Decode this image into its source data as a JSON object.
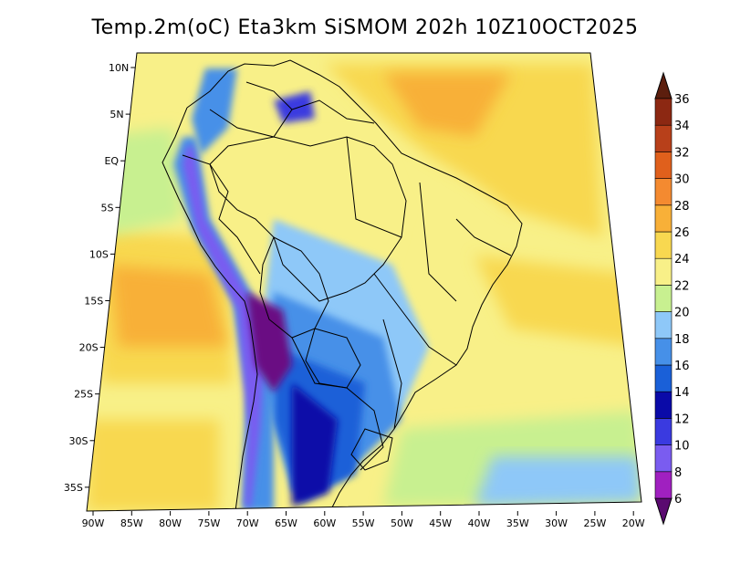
{
  "title": "Temp.2m(oC) Eta3km SiSMOM 202h 10Z10OCT2025",
  "map": {
    "lat_labels": [
      "10N",
      "5N",
      "EQ",
      "5S",
      "10S",
      "15S",
      "20S",
      "25S",
      "30S",
      "35S"
    ],
    "lon_labels": [
      "90W",
      "85W",
      "80W",
      "75W",
      "70W",
      "65W",
      "60W",
      "55W",
      "50W",
      "45W",
      "40W",
      "35W",
      "30W",
      "25W",
      "20W"
    ],
    "projection": "polar stereographic",
    "lat_range": [
      -38,
      12
    ],
    "lon_range": [
      -91,
      -20
    ]
  },
  "colorbar": {
    "unit": "oC",
    "levels": [
      6,
      8,
      10,
      12,
      14,
      16,
      18,
      20,
      22,
      24,
      26,
      28,
      30,
      32,
      34,
      36
    ],
    "labels": [
      "6",
      "8",
      "10",
      "12",
      "14",
      "16",
      "18",
      "20",
      "22",
      "24",
      "26",
      "28",
      "30",
      "32",
      "34",
      "36"
    ],
    "colors": [
      "#6a0d83",
      "#a020c0",
      "#7a5cf0",
      "#3a3ae0",
      "#0a0aa8",
      "#1a60d8",
      "#4690e8",
      "#8ec8f8",
      "#c8f090",
      "#f8f088",
      "#f8d850",
      "#f8b038",
      "#f48a30",
      "#e0601c",
      "#b8401a",
      "#8c2812",
      "#5c1e0e"
    ],
    "below_color": "#5a0a70",
    "above_color": "#5c1e0e"
  }
}
